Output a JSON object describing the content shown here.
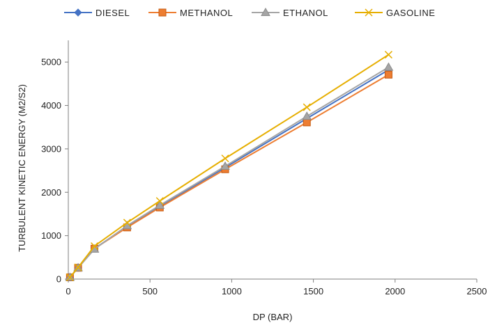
{
  "chart_data": {
    "type": "line",
    "title": "",
    "xlabel": "DP (BAR)",
    "ylabel": "TURBULENT KINETIC ENERGY (M2/S2)",
    "xlim": [
      0,
      2500
    ],
    "ylim": [
      0,
      5500
    ],
    "xticks": [
      0,
      500,
      1000,
      1500,
      2000,
      2500
    ],
    "yticks": [
      0,
      1000,
      2000,
      3000,
      4000,
      5000
    ],
    "grid": false,
    "legend_position": "top",
    "series": [
      {
        "name": "DIESEL",
        "color": "#4472C4",
        "marker": "diamond",
        "x": [
          10,
          60,
          160,
          360,
          560,
          960,
          1460,
          1960
        ],
        "y": [
          40,
          260,
          700,
          1220,
          1680,
          2570,
          3700,
          4820
        ]
      },
      {
        "name": "METHANOL",
        "color": "#ED7D31",
        "marker": "square",
        "x": [
          10,
          60,
          160,
          360,
          560,
          960,
          1460,
          1960
        ],
        "y": [
          40,
          260,
          700,
          1190,
          1650,
          2530,
          3610,
          4710
        ]
      },
      {
        "name": "ETHANOL",
        "color": "#A5A5A5",
        "marker": "triangle",
        "x": [
          10,
          60,
          160,
          360,
          560,
          960,
          1460,
          1960
        ],
        "y": [
          40,
          260,
          690,
          1230,
          1700,
          2600,
          3750,
          4880
        ]
      },
      {
        "name": "GASOLINE",
        "color": "#E6AE00",
        "marker": "x",
        "x": [
          10,
          60,
          160,
          360,
          560,
          960,
          1460,
          1960
        ],
        "y": [
          40,
          270,
          760,
          1300,
          1800,
          2780,
          3960,
          5170
        ]
      }
    ]
  }
}
